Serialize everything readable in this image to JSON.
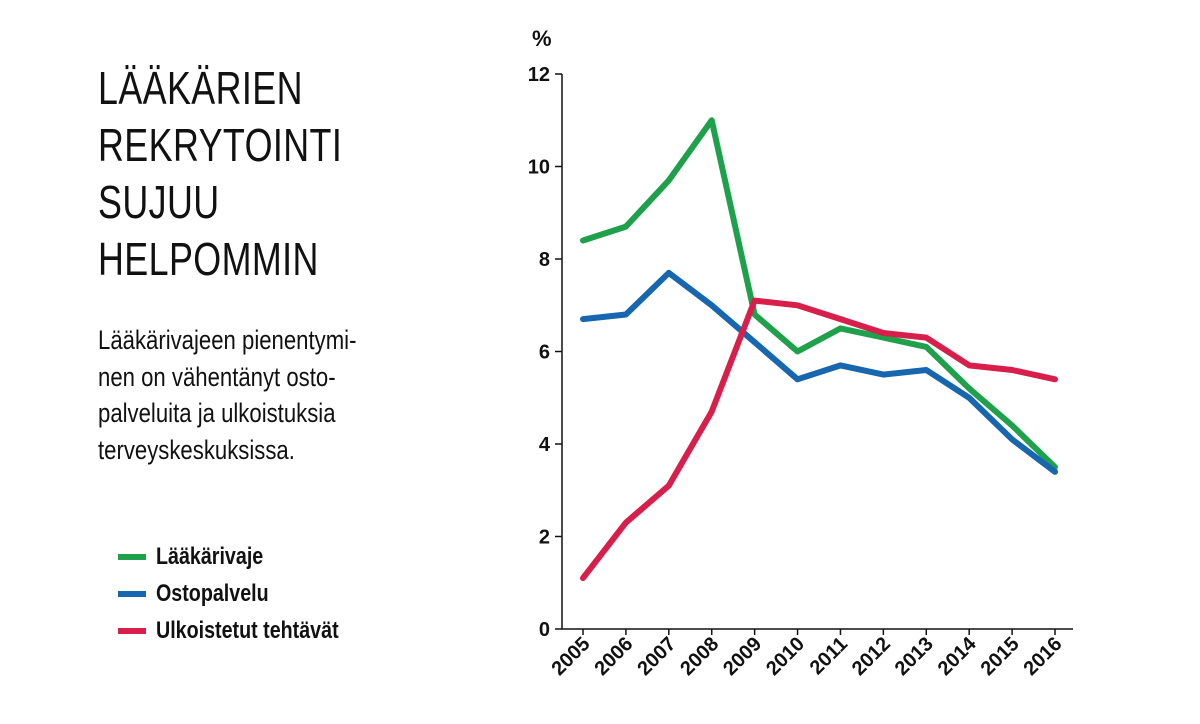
{
  "title_lines": [
    "LÄÄKÄRIEN",
    "REKRYTOINTI",
    "SUJUU",
    "HELPOMMIN"
  ],
  "subtitle_lines": [
    "Lääkärivajeen pienentymi-",
    "nen on vähentänyt osto-",
    "palveluita ja ulkoistuksia",
    "terveyskeskuksissa."
  ],
  "chart_data": {
    "type": "line",
    "title": "LÄÄKÄRIEN REKRYTOINTI SUJUU HELPOMMIN",
    "xlabel": "",
    "ylabel": "%",
    "x": [
      "2005",
      "2006",
      "2007",
      "2008",
      "2009",
      "2010",
      "2011",
      "2012",
      "2013",
      "2014",
      "2015",
      "2016"
    ],
    "ylim": [
      0,
      12
    ],
    "yticks": [
      0,
      2,
      4,
      6,
      8,
      10,
      12
    ],
    "grid": false,
    "legend_position": "bottom-left",
    "series": [
      {
        "name": "Lääkärivaje",
        "color": "#1fa04b",
        "values": [
          8.4,
          8.7,
          9.7,
          11.0,
          6.8,
          6.0,
          6.5,
          6.3,
          6.1,
          5.2,
          4.4,
          3.5
        ]
      },
      {
        "name": "Ostopalvelu",
        "color": "#1666b0",
        "values": [
          6.7,
          6.8,
          7.7,
          7.0,
          6.2,
          5.4,
          5.7,
          5.5,
          5.6,
          5.0,
          4.1,
          3.4
        ]
      },
      {
        "name": "Ulkoistetut tehtävät",
        "color": "#d81e4a",
        "values": [
          1.1,
          2.3,
          3.1,
          4.7,
          7.1,
          7.0,
          6.7,
          6.4,
          6.3,
          5.7,
          5.6,
          5.4
        ]
      }
    ]
  }
}
